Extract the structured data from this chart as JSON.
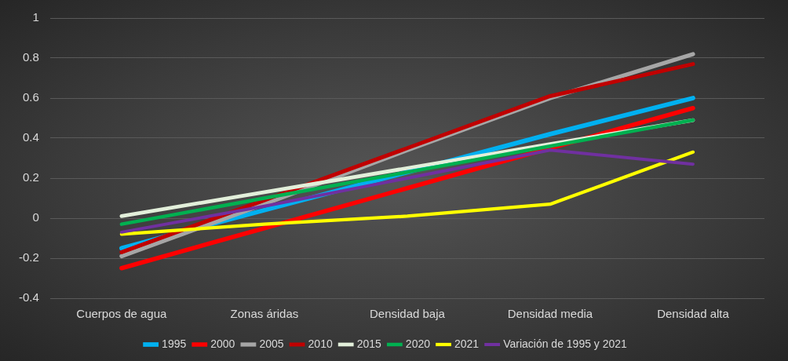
{
  "chart_data": {
    "type": "line",
    "categories": [
      "Cuerpos de agua",
      "Zonas áridas",
      "Densidad baja",
      "Densidad media",
      "Densidad alta"
    ],
    "series": [
      {
        "name": "1995",
        "color": "#00b0f0",
        "values": [
          -0.15,
          0.04,
          0.23,
          0.42,
          0.6
        ]
      },
      {
        "name": "2000",
        "color": "#ff0000",
        "values": [
          -0.25,
          -0.05,
          0.15,
          0.35,
          0.55
        ]
      },
      {
        "name": "2005",
        "color": "#a6a6a6",
        "values": [
          -0.19,
          0.07,
          0.34,
          0.6,
          0.82
        ]
      },
      {
        "name": "2010",
        "color": "#c00000",
        "values": [
          -0.17,
          0.09,
          0.35,
          0.61,
          0.77
        ]
      },
      {
        "name": "2015",
        "color": "#e2efda",
        "values": [
          0.01,
          0.13,
          0.25,
          0.37,
          0.49
        ]
      },
      {
        "name": "2020",
        "color": "#00b050",
        "values": [
          -0.03,
          0.1,
          0.23,
          0.36,
          0.49
        ]
      },
      {
        "name": "2021",
        "color": "#ffff00",
        "values": [
          -0.08,
          -0.03,
          0.01,
          0.07,
          0.33
        ]
      },
      {
        "name": "Variación de 1995 y 2021",
        "color": "#7030a0",
        "values": [
          -0.07,
          0.06,
          0.2,
          0.34,
          0.27
        ]
      }
    ],
    "ylim": [
      -0.4,
      1
    ],
    "yticks": [
      -0.4,
      -0.2,
      0,
      0.2,
      0.4,
      0.6,
      0.8,
      1
    ],
    "grid": "y",
    "legend": "bottom",
    "marker": "none"
  }
}
